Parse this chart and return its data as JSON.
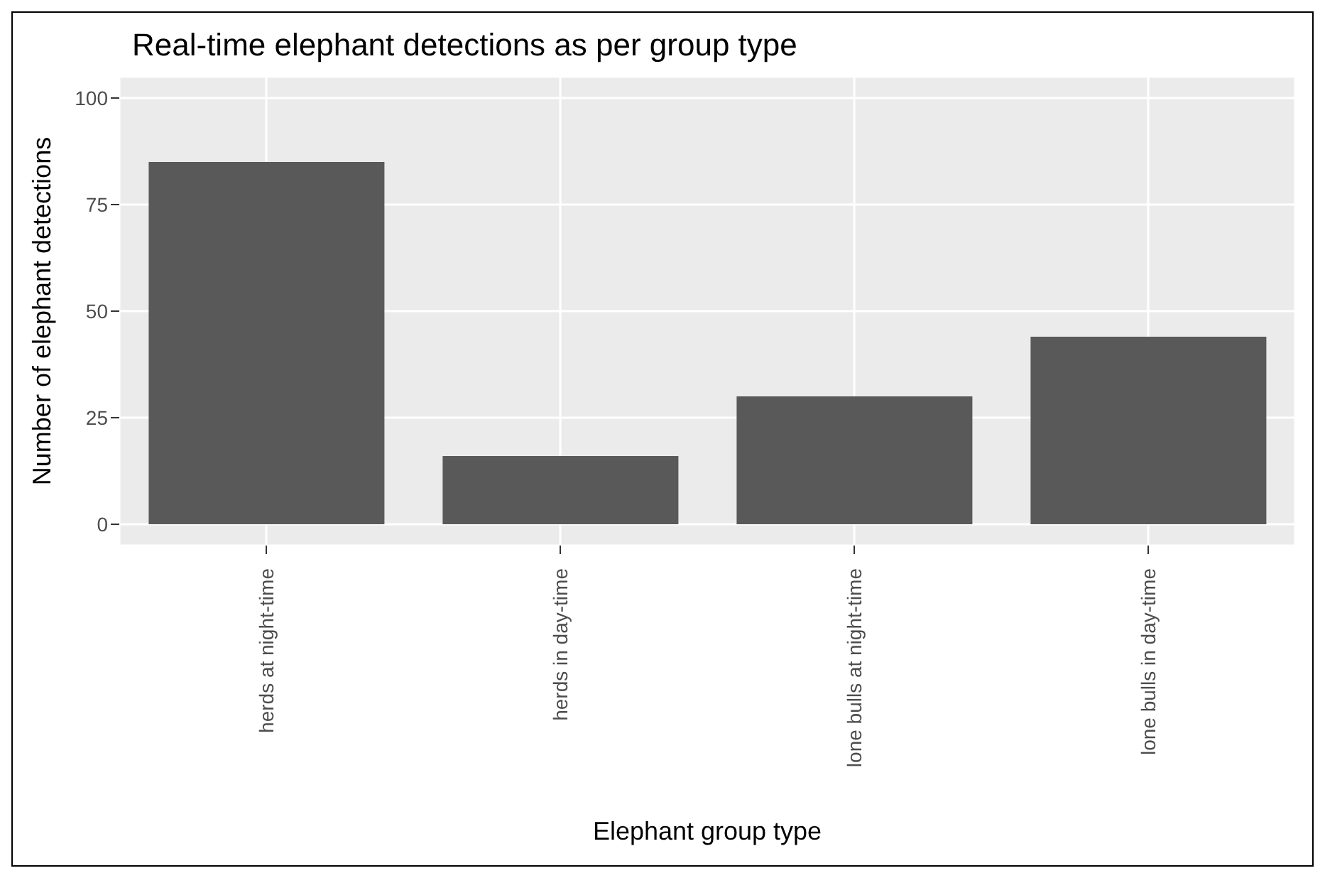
{
  "chart_data": {
    "type": "bar",
    "title": "Real-time elephant detections as per group type",
    "xlabel": "Elephant group type",
    "ylabel": "Number of elephant detections",
    "categories": [
      "herds at night-time",
      "herds in day-time",
      "lone bulls at night-time",
      "lone bulls in day-time"
    ],
    "values": [
      85,
      16,
      30,
      44
    ],
    "color": "#595959",
    "ylim": [
      -5,
      105
    ],
    "yticks": [
      0,
      25,
      50,
      75,
      100
    ],
    "grid": true
  }
}
